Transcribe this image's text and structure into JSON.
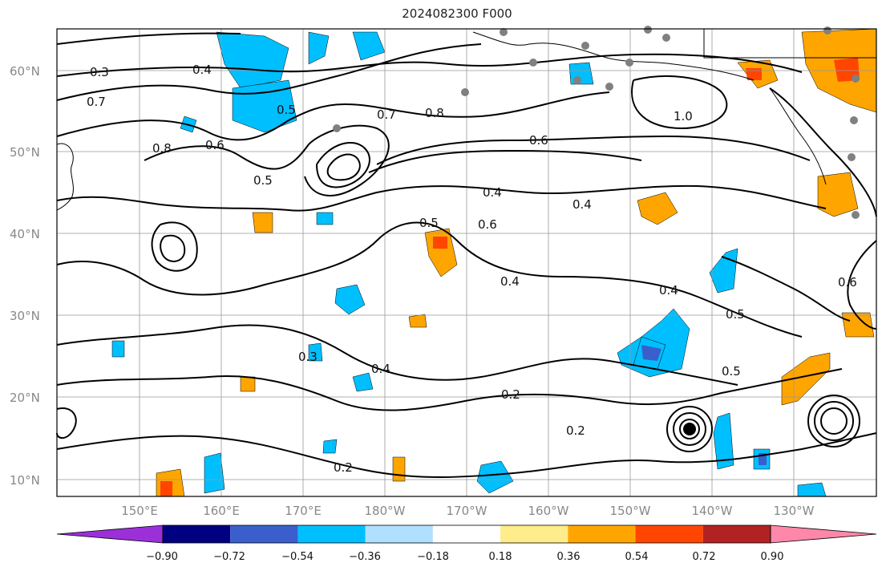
{
  "title": "2024082300 F000",
  "lat_labels": [
    "60°N",
    "50°N",
    "40°N",
    "30°N",
    "20°N",
    "10°N"
  ],
  "lon_labels": [
    "150°E",
    "160°E",
    "170°E",
    "180°W",
    "170°W",
    "160°W",
    "150°W",
    "140°W",
    "130°W"
  ],
  "contour_labels": [
    "0.3",
    "0.4",
    "0.7",
    "0.5",
    "0.8",
    "0.6",
    "1.0",
    "0.7",
    "0.8",
    "0.6",
    "0.4",
    "0.5",
    "0.4",
    "0.6",
    "0.4",
    "0.5",
    "0.4",
    "0.3",
    "0.2",
    "0.2",
    "0.2",
    "0.5",
    "0.4",
    "0.5",
    "0.6"
  ],
  "colorbar": {
    "colors": [
      "#9b30d9",
      "#000080",
      "#3a5fcd",
      "#00bfff",
      "#b0e0ff",
      "#ffffff",
      "#ffec8b",
      "#ffa500",
      "#ff4500",
      "#b22222",
      "#ff88aa"
    ],
    "tick_labels": [
      "−0.90",
      "−0.72",
      "−0.54",
      "−0.36",
      "−0.18",
      "0.18",
      "0.36",
      "0.54",
      "0.72",
      "0.90"
    ]
  }
}
